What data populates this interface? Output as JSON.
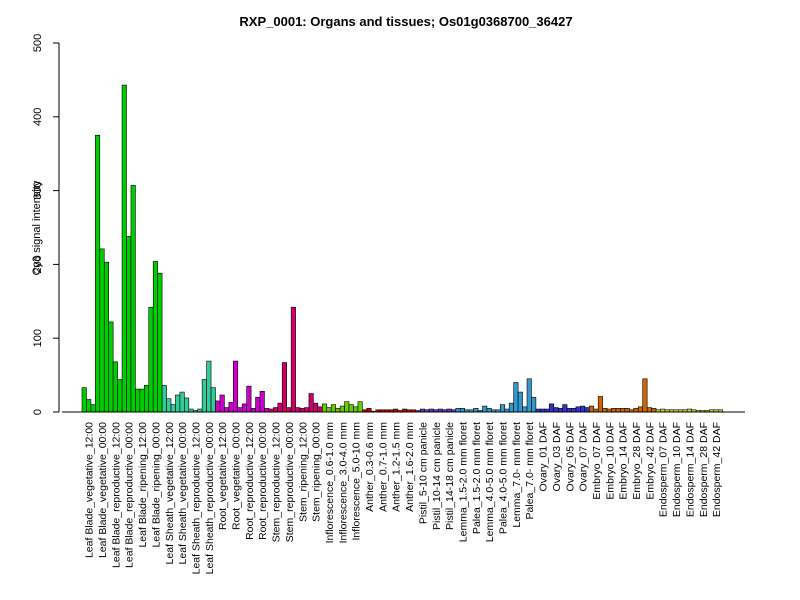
{
  "chart_data": {
    "type": "bar",
    "title": "RXP_0001: Organs and tissues; Os01g0368700_36427",
    "ylabel": "Cy3 signal intensity",
    "xlabel": "",
    "ylim": [
      0,
      500
    ],
    "yticks": [
      0,
      100,
      200,
      300,
      400,
      500
    ],
    "grid": false,
    "legend": "none",
    "groups": [
      {
        "label": "Leaf Blade_vegetative_12:00",
        "color": "#00cc00",
        "values": [
          33,
          17,
          10
        ]
      },
      {
        "label": "Leaf Blade_vegetative_00:00",
        "color": "#00cc00",
        "values": [
          375,
          221,
          203
        ]
      },
      {
        "label": "Leaf Blade_reproductive_12:00",
        "color": "#00cc00",
        "values": [
          122,
          68,
          44
        ]
      },
      {
        "label": "Leaf Blade_reproductive_00:00",
        "color": "#00cc00",
        "values": [
          443,
          238,
          307
        ]
      },
      {
        "label": "Leaf Blade_ripening_12:00",
        "color": "#00cc00",
        "values": [
          31,
          31,
          36
        ]
      },
      {
        "label": "Leaf Blade_ripening_00:00",
        "color": "#00cc00",
        "values": [
          142,
          204,
          188
        ]
      },
      {
        "label": "Leaf Sheath_vegetative_12:00",
        "color": "#33cc99",
        "values": [
          36,
          18,
          10
        ]
      },
      {
        "label": "Leaf Sheath_vegetative_00:00",
        "color": "#33cc99",
        "values": [
          23,
          27,
          19
        ]
      },
      {
        "label": "Leaf Sheath_reproductive_12:00",
        "color": "#33cc99",
        "values": [
          4,
          2,
          4
        ]
      },
      {
        "label": "Leaf Sheath_reproductive_00:00",
        "color": "#33cc99",
        "values": [
          44,
          69,
          33
        ]
      },
      {
        "label": "Root_vegetative_12:00",
        "color": "#cc00cc",
        "values": [
          15,
          23,
          6
        ]
      },
      {
        "label": "Root_vegetative_00:00",
        "color": "#cc00cc",
        "values": [
          13,
          69,
          6
        ]
      },
      {
        "label": "Root_reproductive_12:00",
        "color": "#cc00cc",
        "values": [
          11,
          35,
          5
        ]
      },
      {
        "label": "Root_reproductive_00:00",
        "color": "#cc00cc",
        "values": [
          20,
          28,
          5
        ]
      },
      {
        "label": "Stem_reproductive_12:00",
        "color": "#cc0066",
        "values": [
          4,
          6,
          12
        ]
      },
      {
        "label": "Stem_reproductive_00:00",
        "color": "#cc0066",
        "values": [
          67,
          6,
          142
        ]
      },
      {
        "label": "Stem_ripening_12:00",
        "color": "#cc0066",
        "values": [
          6,
          5,
          6
        ]
      },
      {
        "label": "Stem_ripening_00:00",
        "color": "#cc0066",
        "values": [
          25,
          12,
          7
        ]
      },
      {
        "label": "Inflorescence_0.6-1.0 mm",
        "color": "#66cc00",
        "values": [
          11,
          6,
          10
        ]
      },
      {
        "label": "Inflorescence_3.0-4.0 mm",
        "color": "#66cc00",
        "values": [
          5,
          8,
          14
        ]
      },
      {
        "label": "Inflorescence_5.0-10 mm",
        "color": "#66cc00",
        "values": [
          10,
          7,
          14
        ]
      },
      {
        "label": "Anther_0.3-0.6 mm",
        "color": "#cc0000",
        "values": [
          3,
          5,
          1
        ]
      },
      {
        "label": "Anther_0.7-1.0 mm",
        "color": "#cc0000",
        "values": [
          3,
          3,
          3
        ]
      },
      {
        "label": "Anther_1.2-1.5 mm",
        "color": "#cc0000",
        "values": [
          3,
          4,
          2
        ]
      },
      {
        "label": "Anther_1.6-2.0 mm",
        "color": "#cc0000",
        "values": [
          4,
          3,
          3
        ]
      },
      {
        "label": "Pistil_5-10 cm panicle",
        "color": "#6633cc",
        "values": [
          2,
          4,
          3
        ]
      },
      {
        "label": "Pistil_10-14 cm panicle",
        "color": "#6633cc",
        "values": [
          4,
          3,
          4
        ]
      },
      {
        "label": "Pistil_14-18 cm panicle",
        "color": "#6633cc",
        "values": [
          3,
          4,
          3
        ]
      },
      {
        "label": "Lemma_1.5-2.0 mm floret",
        "color": "#3399cc",
        "values": [
          5,
          5,
          3
        ]
      },
      {
        "label": "Palea_1.5-2.0 mm floret",
        "color": "#3399cc",
        "values": [
          3,
          5,
          2
        ]
      },
      {
        "label": "Lemma_4.0-5.0 mm floret",
        "color": "#3399cc",
        "values": [
          8,
          5,
          3
        ]
      },
      {
        "label": "Palea_4.0-5.0 mm floret",
        "color": "#3399cc",
        "values": [
          3,
          10,
          4
        ]
      },
      {
        "label": "Lemma_7.0- mm floret",
        "color": "#3399cc",
        "values": [
          12,
          40,
          27
        ]
      },
      {
        "label": "Palea_7.0- mm floret",
        "color": "#3399cc",
        "values": [
          7,
          45,
          20
        ]
      },
      {
        "label": "Ovary_01 DAF",
        "color": "#3333cc",
        "values": [
          4,
          4,
          4
        ]
      },
      {
        "label": "Ovary_03 DAF",
        "color": "#3333cc",
        "values": [
          11,
          6,
          5
        ]
      },
      {
        "label": "Ovary_05 DAF",
        "color": "#3333cc",
        "values": [
          10,
          5,
          5
        ]
      },
      {
        "label": "Ovary_07 DAF",
        "color": "#3333cc",
        "values": [
          7,
          8,
          6
        ]
      },
      {
        "label": "Embryo_07 DAF",
        "color": "#cc6600",
        "values": [
          8,
          4,
          21
        ]
      },
      {
        "label": "Embryo_10 DAF",
        "color": "#cc6600",
        "values": [
          5,
          4,
          5
        ]
      },
      {
        "label": "Embryo_14 DAF",
        "color": "#cc6600",
        "values": [
          5,
          5,
          5
        ]
      },
      {
        "label": "Embryo_28 DAF",
        "color": "#cc6600",
        "values": [
          3,
          5,
          7
        ]
      },
      {
        "label": "Embryo_42 DAF",
        "color": "#cc6600",
        "values": [
          45,
          6,
          5
        ]
      },
      {
        "label": "Endosperm_07 DAF",
        "color": "#cccc33",
        "values": [
          3,
          4,
          3
        ]
      },
      {
        "label": "Endosperm_10 DAF",
        "color": "#cccc33",
        "values": [
          3,
          3,
          3
        ]
      },
      {
        "label": "Endosperm_14 DAF",
        "color": "#cccc33",
        "values": [
          3,
          4,
          3
        ]
      },
      {
        "label": "Endosperm_28 DAF",
        "color": "#cccc33",
        "values": [
          2,
          2,
          2
        ]
      },
      {
        "label": "Endosperm_42 DAF",
        "color": "#cccc33",
        "values": [
          3,
          3,
          3
        ]
      }
    ]
  }
}
